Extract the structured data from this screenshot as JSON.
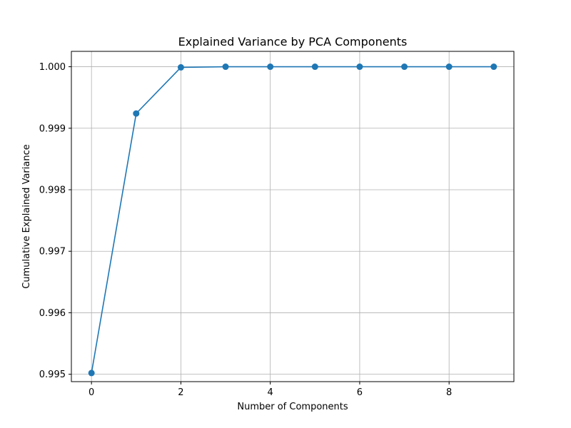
{
  "chart_data": {
    "type": "line",
    "title": "Explained Variance by PCA Components",
    "xlabel": "Number of Components",
    "ylabel": "Cumulative Explained Variance",
    "x": [
      0,
      1,
      2,
      3,
      4,
      5,
      6,
      7,
      8,
      9
    ],
    "series": [
      {
        "values": [
          0.99502,
          0.99924,
          0.99999,
          1.0,
          1.0,
          1.0,
          1.0,
          1.0,
          1.0,
          1.0
        ],
        "color": "#1f77b4",
        "marker": "circle"
      }
    ],
    "xlim": [
      -0.45,
      9.45
    ],
    "ylim": [
      0.99488,
      1.00025
    ],
    "xticks": [
      0,
      2,
      4,
      6,
      8
    ],
    "xtick_labels": [
      "0",
      "2",
      "4",
      "6",
      "8"
    ],
    "yticks": [
      0.995,
      0.996,
      0.997,
      0.998,
      0.999,
      1.0
    ],
    "ytick_labels": [
      "0.995",
      "0.996",
      "0.997",
      "0.998",
      "0.999",
      "1.000"
    ],
    "grid": true,
    "colors": {
      "grid": "#b0b0b0",
      "axes": "#000000",
      "background": "#ffffff"
    }
  }
}
